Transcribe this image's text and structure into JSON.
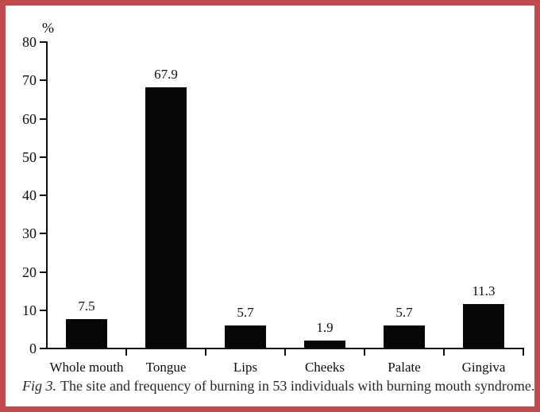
{
  "chart_data": {
    "type": "bar",
    "title": "",
    "xlabel": "",
    "ylabel": "%",
    "categories": [
      "Whole mouth",
      "Tongue",
      "Lips",
      "Cheeks",
      "Palate",
      "Gingiva"
    ],
    "values": [
      7.5,
      67.9,
      5.7,
      1.9,
      5.7,
      11.3
    ],
    "value_labels": [
      "7.5",
      "67.9",
      "5.7",
      "1.9",
      "5.7",
      "11.3"
    ],
    "ylim": [
      0,
      80
    ],
    "yticks": [
      0,
      10,
      20,
      30,
      40,
      50,
      60,
      70,
      80
    ],
    "bar_color": "#060606",
    "axis_color": "#111111",
    "grid": false,
    "legend": "none"
  },
  "caption": {
    "label": "Fig 3.",
    "text": "The site and frequency of burning in 53 individuals with burning mouth syndrome."
  },
  "frame": {
    "border_color": "#c14b4c"
  }
}
